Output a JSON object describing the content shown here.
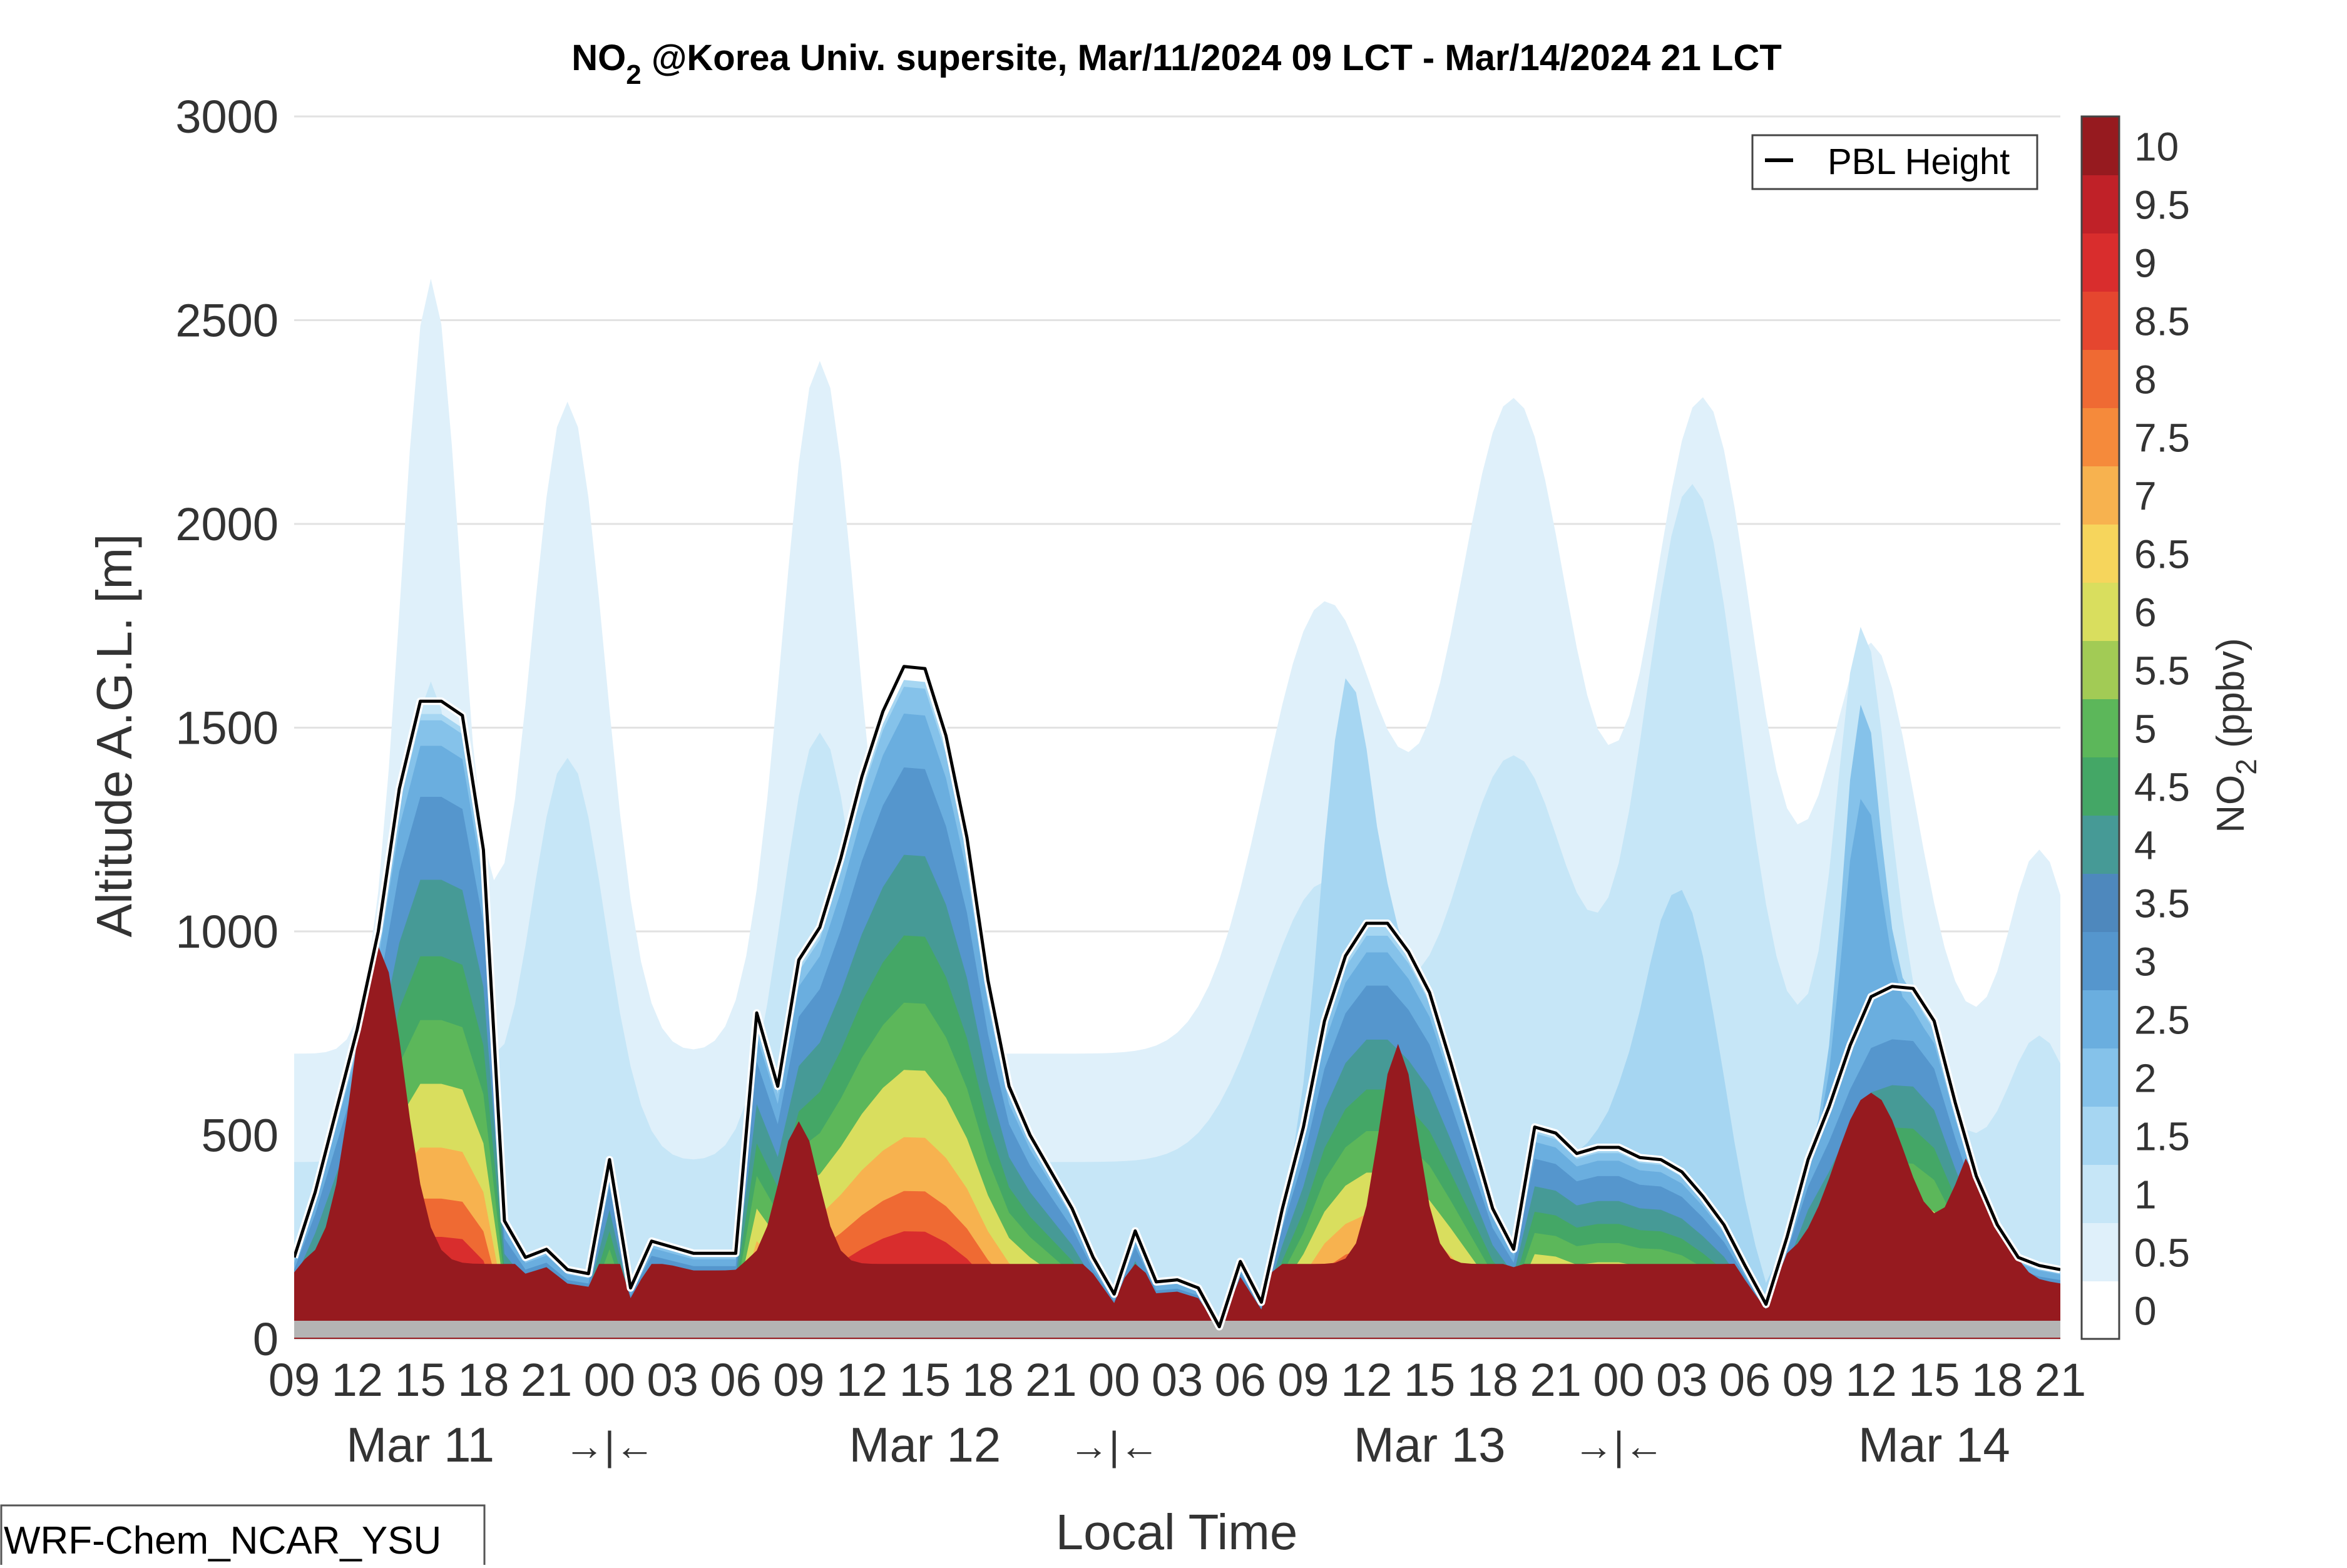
{
  "chart_data": {
    "type": "heatmap",
    "title_main": "NO",
    "title_sub": "2",
    "title_rest": " @Korea Univ. supersite, Mar/11/2024 09 LCT - Mar/14/2024 21 LCT",
    "xlabel": "Local Time",
    "ylabel": "Altitude A.G.L. [m]",
    "model_label": "WRF-Chem_NCAR_YSU",
    "legend_label": "PBL Height",
    "colorbar_label_main": "NO",
    "colorbar_label_sub": "2",
    "colorbar_label_rest": " (ppbv)",
    "ylim": [
      0,
      3000
    ],
    "y_ticks": [
      0,
      500,
      1000,
      1500,
      2000,
      2500,
      3000
    ],
    "x_hours": [
      9,
      12,
      15,
      18,
      21,
      24,
      27,
      30,
      33,
      36,
      39,
      42,
      45,
      48,
      51,
      54,
      57,
      60,
      63,
      66,
      69,
      72,
      75,
      78,
      81,
      84,
      87,
      90,
      93
    ],
    "x_tick_labels": [
      "09",
      "12",
      "15",
      "18",
      "21",
      "00",
      "03",
      "06",
      "09",
      "12",
      "15",
      "18",
      "21",
      "00",
      "03",
      "06",
      "09",
      "12",
      "15",
      "18",
      "21",
      "00",
      "03",
      "06",
      "09",
      "12",
      "15",
      "18",
      "21"
    ],
    "day_labels": [
      {
        "text": "Mar 11",
        "hour": 15
      },
      {
        "text": "Mar 12",
        "hour": 39
      },
      {
        "text": "Mar 13",
        "hour": 63
      },
      {
        "text": "Mar 14",
        "hour": 87
      }
    ],
    "night_marks": [
      {
        "text": "→|←",
        "hour": 24
      },
      {
        "text": "→|←",
        "hour": 48
      },
      {
        "text": "→|←",
        "hour": 72
      }
    ],
    "colorbar_levels": [
      0,
      0.5,
      1,
      1.5,
      2,
      2.5,
      3,
      3.5,
      4,
      4.5,
      5,
      5.5,
      6,
      6.5,
      7,
      7.5,
      8,
      8.5,
      9,
      9.5,
      10
    ],
    "colorbar_tick_labels": [
      "0",
      "0.5",
      "1",
      "1.5",
      "2",
      "2.5",
      "3",
      "3.5",
      "4",
      "4.5",
      "5",
      "5.5",
      "6",
      "6.5",
      "7",
      "7.5",
      "8",
      "8.5",
      "9",
      "9.5",
      "10"
    ],
    "colorbar_colors": [
      "#ffffff",
      "#dff0fa",
      "#c6e6f7",
      "#a6d6f2",
      "#85c2ea",
      "#6aaedf",
      "#5596cd",
      "#4e88bd",
      "#469a96",
      "#44a766",
      "#5cb75a",
      "#a2cb55",
      "#d9de5e",
      "#f6d55c",
      "#f7b24f",
      "#f58a3b",
      "#ef6a33",
      "#e5462f",
      "#d92d2d",
      "#c02128",
      "#961a1f"
    ],
    "pbl_height": {
      "hours": [
        9,
        10,
        11,
        12,
        13,
        14,
        15,
        16,
        17,
        18,
        19,
        20,
        21,
        22,
        23,
        24,
        25,
        26,
        27,
        28,
        29,
        30,
        31,
        32,
        33,
        34,
        35,
        36,
        37,
        38,
        39,
        40,
        41,
        42,
        43,
        44,
        45,
        46,
        47,
        48,
        49,
        50,
        51,
        52,
        53,
        54,
        55,
        56,
        57,
        58,
        59,
        60,
        61,
        62,
        63,
        64,
        65,
        66,
        67,
        68,
        69,
        70,
        71,
        72,
        73,
        74,
        75,
        76,
        77,
        78,
        79,
        80,
        81,
        82,
        83,
        84,
        85,
        86,
        87,
        88,
        89,
        90,
        91,
        92,
        93
      ],
      "values": [
        200,
        360,
        560,
        760,
        1000,
        1350,
        1565,
        1565,
        1530,
        1200,
        290,
        200,
        220,
        170,
        160,
        440,
        125,
        240,
        225,
        210,
        210,
        210,
        800,
        620,
        930,
        1010,
        1180,
        1380,
        1540,
        1650,
        1645,
        1480,
        1230,
        880,
        620,
        500,
        410,
        320,
        200,
        110,
        265,
        140,
        145,
        125,
        30,
        190,
        90,
        320,
        520,
        780,
        940,
        1020,
        1020,
        950,
        850,
        680,
        500,
        320,
        220,
        520,
        505,
        455,
        470,
        470,
        445,
        440,
        410,
        350,
        280,
        180,
        85,
        250,
        440,
        570,
        720,
        840,
        865,
        860,
        780,
        580,
        400,
        280,
        200,
        180,
        170
      ]
    },
    "grid": true
  }
}
